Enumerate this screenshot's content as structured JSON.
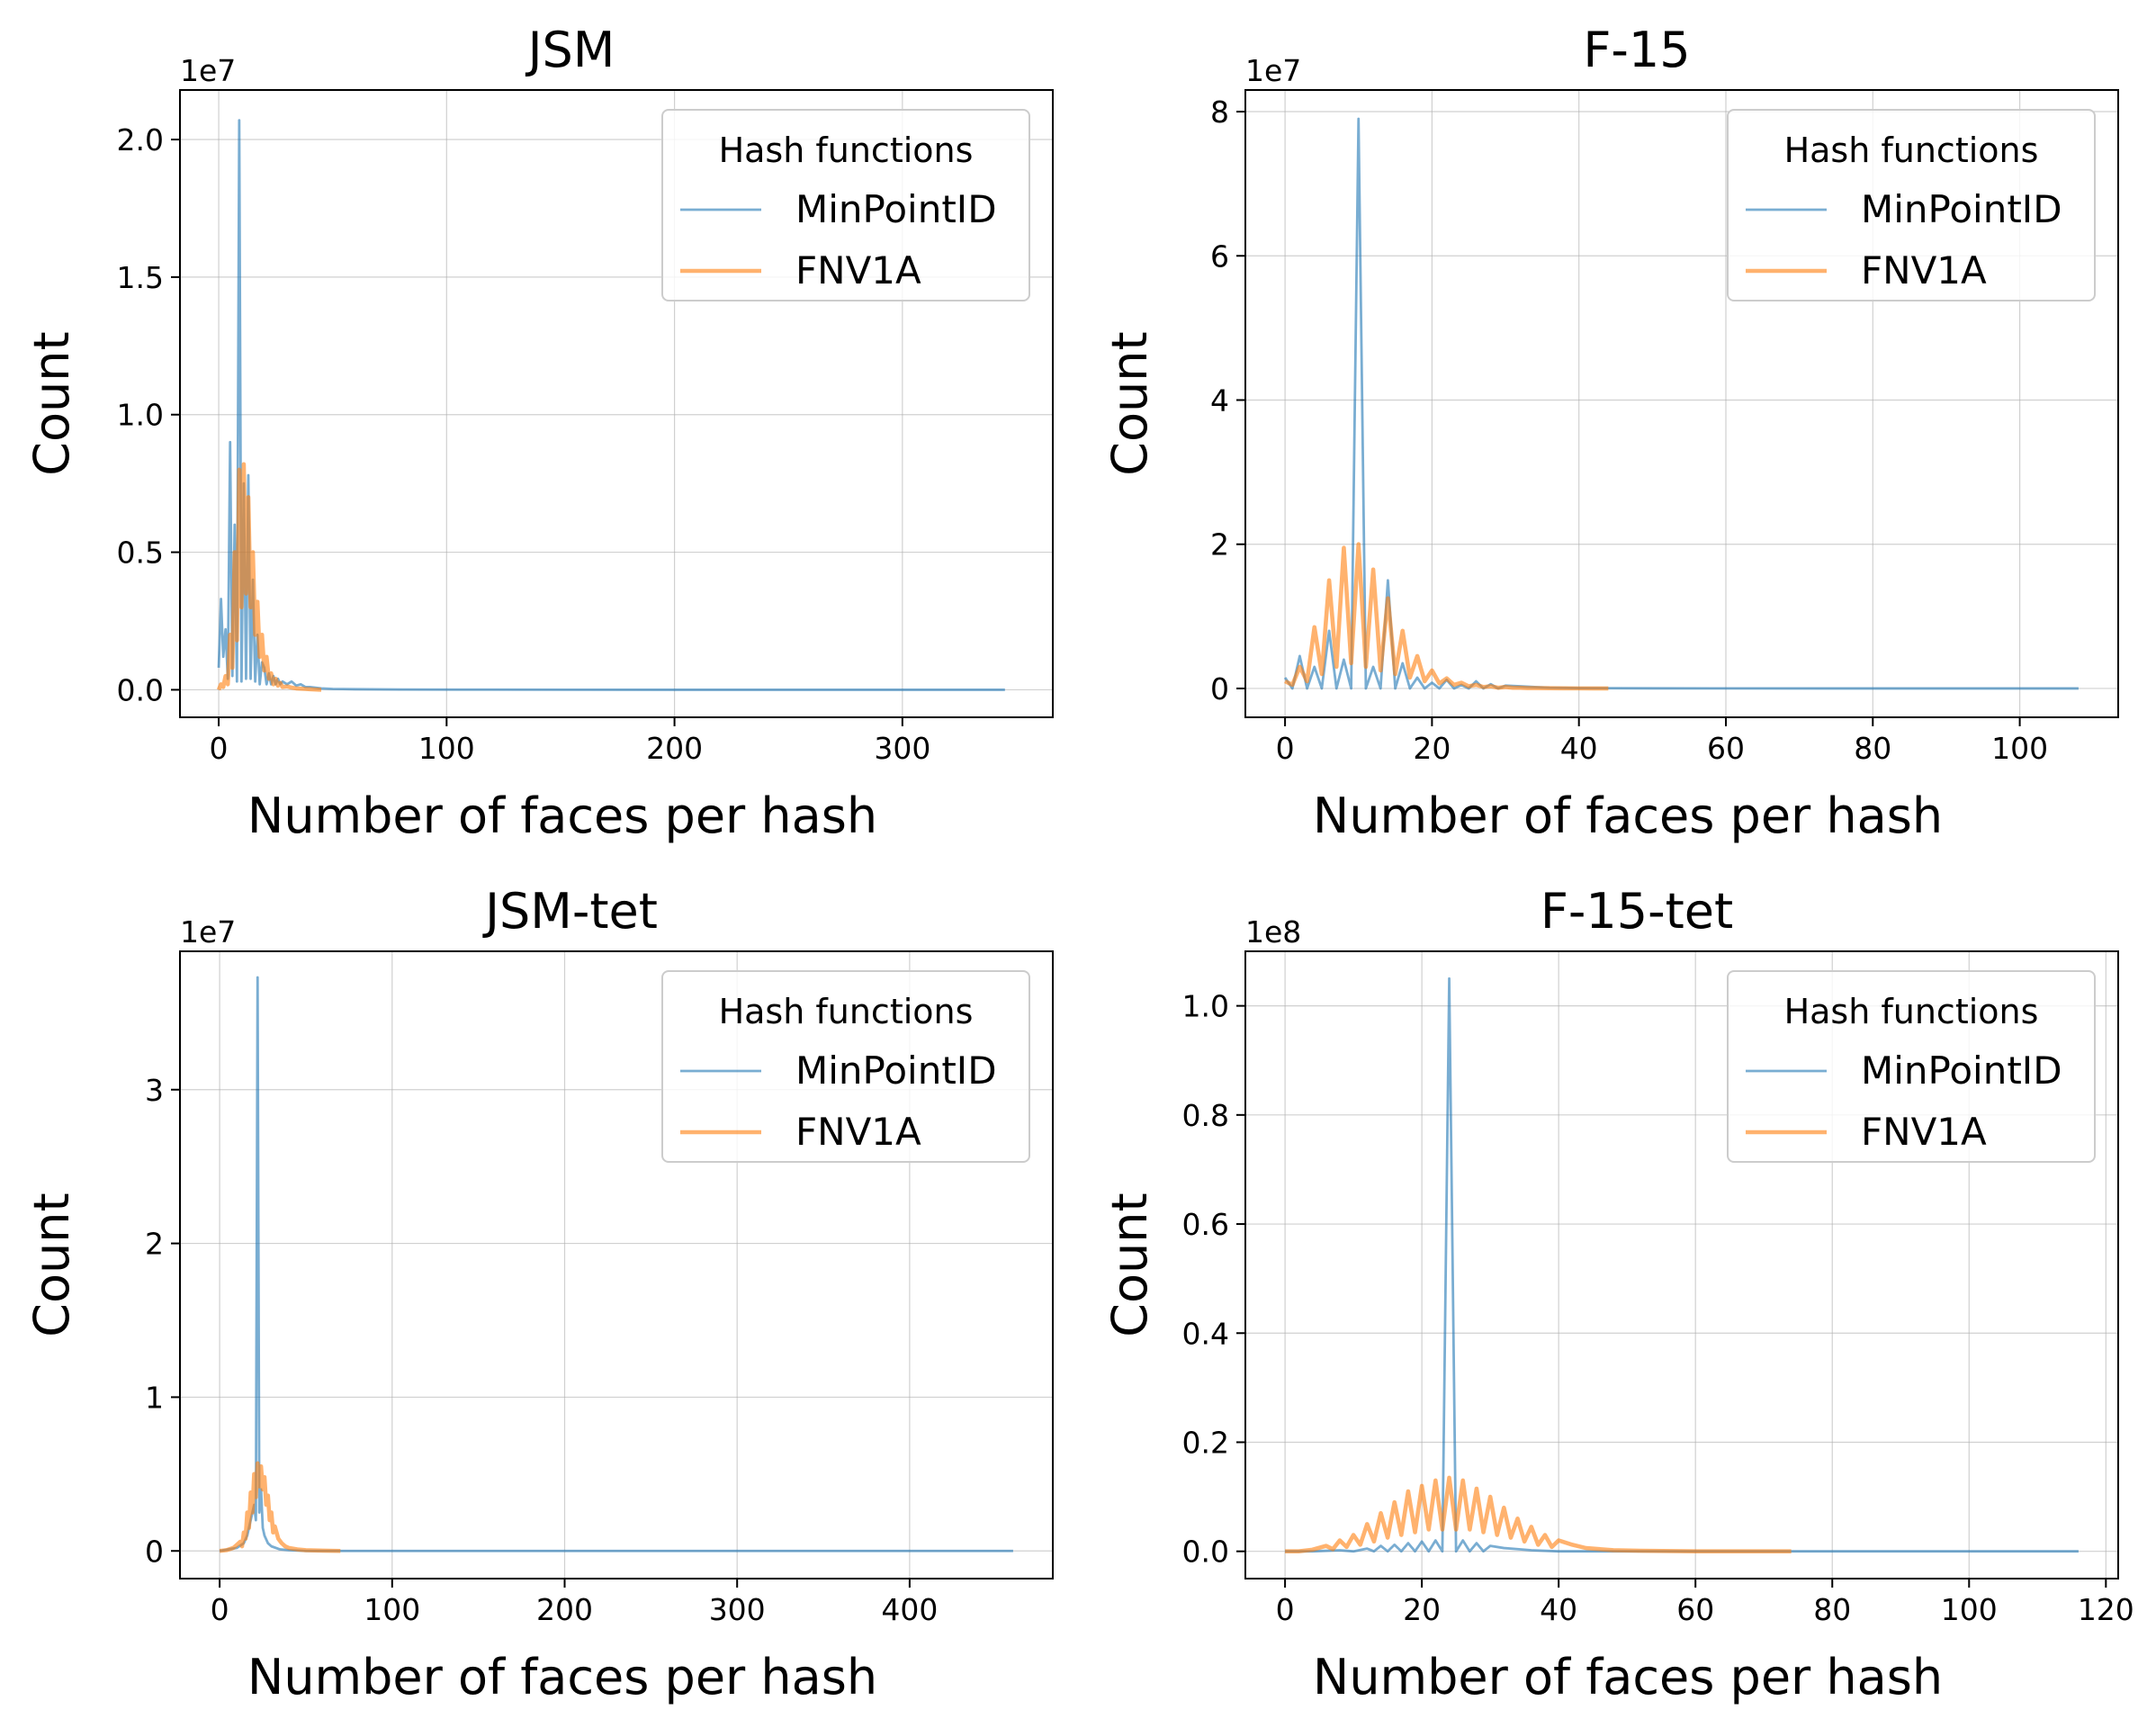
{
  "colors": {
    "MinPointID": "#1f77b4",
    "FNV1A": "#ff7f0e",
    "grid": "#b0b0b0",
    "axes": "#000000"
  },
  "chart_data": [
    {
      "type": "line",
      "title": "JSM",
      "xlabel": "Number of faces per hash",
      "ylabel": "Count",
      "offset_label": "1e7",
      "scale": 10000000,
      "xlim": [
        -17,
        366
      ],
      "ylim": [
        -0.1,
        2.18
      ],
      "xticks": [
        0,
        100,
        200,
        300
      ],
      "yticks": [
        0.0,
        0.5,
        1.0,
        1.5,
        2.0
      ],
      "ytick_labels": [
        "0.0",
        "0.5",
        "1.0",
        "1.5",
        "2.0"
      ],
      "grid": true,
      "legend": {
        "title": "Hash functions",
        "placement": "upper right",
        "entries": [
          "MinPointID",
          "FNV1A"
        ]
      },
      "series": [
        {
          "name": "MinPointID",
          "x": [
            0,
            1,
            2,
            3,
            4,
            5,
            6,
            7,
            8,
            9,
            10,
            11,
            12,
            13,
            14,
            15,
            16,
            17,
            18,
            19,
            20,
            21,
            22,
            23,
            24,
            25,
            26,
            27,
            28,
            30,
            32,
            34,
            36,
            38,
            40,
            45,
            50,
            60,
            80,
            120,
            200,
            300,
            345
          ],
          "y": [
            0.08,
            0.33,
            0.12,
            0.22,
            0.04,
            0.9,
            0.05,
            0.6,
            0.03,
            2.07,
            0.03,
            0.75,
            0.04,
            0.78,
            0.04,
            0.4,
            0.03,
            0.2,
            0.02,
            0.1,
            0.08,
            0.02,
            0.06,
            0.02,
            0.05,
            0.02,
            0.04,
            0.02,
            0.03,
            0.02,
            0.03,
            0.015,
            0.02,
            0.01,
            0.01,
            0.005,
            0.003,
            0.002,
            0.001,
            0.0005,
            0.0,
            0.0,
            0.0
          ]
        },
        {
          "name": "FNV1A",
          "x": [
            0,
            1,
            2,
            3,
            4,
            5,
            6,
            7,
            8,
            9,
            10,
            11,
            12,
            13,
            14,
            15,
            16,
            17,
            18,
            19,
            20,
            21,
            22,
            23,
            24,
            25,
            26,
            27,
            28,
            30,
            32,
            34,
            36,
            38,
            40,
            42,
            45
          ],
          "y": [
            0.0,
            0.02,
            0.01,
            0.05,
            0.02,
            0.2,
            0.08,
            0.5,
            0.18,
            0.8,
            0.3,
            0.82,
            0.35,
            0.7,
            0.3,
            0.5,
            0.2,
            0.32,
            0.12,
            0.2,
            0.07,
            0.12,
            0.04,
            0.06,
            0.02,
            0.04,
            0.015,
            0.025,
            0.01,
            0.012,
            0.008,
            0.005,
            0.004,
            0.003,
            0.002,
            0.001,
            0.0
          ]
        }
      ]
    },
    {
      "type": "line",
      "title": "F-15",
      "xlabel": "Number of faces per hash",
      "ylabel": "Count",
      "offset_label": "1e7",
      "scale": 10000000,
      "xlim": [
        -5.4,
        113.4
      ],
      "ylim": [
        -0.4,
        8.3
      ],
      "xticks": [
        0,
        20,
        40,
        60,
        80,
        100
      ],
      "yticks": [
        0,
        2,
        4,
        6,
        8
      ],
      "ytick_labels": [
        "0",
        "2",
        "4",
        "6",
        "8"
      ],
      "grid": true,
      "legend": {
        "title": "Hash functions",
        "placement": "upper right",
        "entries": [
          "MinPointID",
          "FNV1A"
        ]
      },
      "series": [
        {
          "name": "MinPointID",
          "x": [
            0,
            1,
            2,
            3,
            4,
            5,
            6,
            7,
            8,
            9,
            10,
            11,
            12,
            13,
            14,
            15,
            16,
            17,
            18,
            19,
            20,
            21,
            22,
            23,
            24,
            25,
            26,
            27,
            28,
            29,
            30,
            32,
            34,
            36,
            40,
            50,
            60,
            80,
            100,
            108
          ],
          "y": [
            0.15,
            0.0,
            0.45,
            0.0,
            0.3,
            0.0,
            0.8,
            0.0,
            0.4,
            0.0,
            7.9,
            0.0,
            0.3,
            0.0,
            1.5,
            0.0,
            0.35,
            0.0,
            0.15,
            0.0,
            0.08,
            0.0,
            0.12,
            0.0,
            0.05,
            0.0,
            0.1,
            0.0,
            0.06,
            0.0,
            0.04,
            0.03,
            0.02,
            0.01,
            0.005,
            0.002,
            0.001,
            0.0,
            0.0,
            0.0
          ]
        },
        {
          "name": "FNV1A",
          "x": [
            0,
            1,
            2,
            3,
            4,
            5,
            6,
            7,
            8,
            9,
            10,
            11,
            12,
            13,
            14,
            15,
            16,
            17,
            18,
            19,
            20,
            21,
            22,
            23,
            24,
            25,
            26,
            27,
            28,
            29,
            30,
            31,
            32,
            33,
            34,
            36,
            38,
            40,
            42,
            44
          ],
          "y": [
            0.1,
            0.05,
            0.3,
            0.1,
            0.85,
            0.2,
            1.5,
            0.3,
            1.95,
            0.35,
            2.0,
            0.3,
            1.65,
            0.25,
            1.25,
            0.2,
            0.8,
            0.15,
            0.45,
            0.1,
            0.25,
            0.07,
            0.14,
            0.05,
            0.08,
            0.03,
            0.05,
            0.02,
            0.03,
            0.01,
            0.02,
            0.01,
            0.01,
            0.005,
            0.005,
            0.003,
            0.002,
            0.001,
            0.0,
            0.0
          ]
        }
      ]
    },
    {
      "type": "line",
      "title": "JSM-tet",
      "xlabel": "Number of faces per hash",
      "ylabel": "Count",
      "offset_label": "1e7",
      "scale": 10000000,
      "xlim": [
        -23,
        483
      ],
      "ylim": [
        -0.18,
        3.9
      ],
      "xticks": [
        0,
        100,
        200,
        300,
        400
      ],
      "yticks": [
        0,
        1,
        2,
        3
      ],
      "ytick_labels": [
        "0",
        "1",
        "2",
        "3"
      ],
      "grid": true,
      "legend": {
        "title": "Hash functions",
        "placement": "upper right",
        "entries": [
          "MinPointID",
          "FNV1A"
        ]
      },
      "series": [
        {
          "name": "MinPointID",
          "x": [
            0,
            5,
            10,
            14,
            16,
            18,
            20,
            21,
            22,
            23,
            24,
            25,
            26,
            28,
            30,
            35,
            40,
            50,
            70,
            100,
            200,
            300,
            400,
            460
          ],
          "y": [
            0.0,
            0.01,
            0.02,
            0.05,
            0.1,
            0.2,
            0.3,
            0.2,
            3.73,
            0.25,
            0.4,
            0.15,
            0.1,
            0.05,
            0.03,
            0.01,
            0.005,
            0.0,
            0.0,
            0.0,
            0.0,
            0.0,
            0.0,
            0.0
          ]
        },
        {
          "name": "FNV1A",
          "x": [
            0,
            4,
            8,
            10,
            12,
            13,
            14,
            15,
            16,
            17,
            18,
            19,
            20,
            21,
            22,
            23,
            24,
            25,
            26,
            27,
            28,
            29,
            30,
            31,
            32,
            34,
            36,
            38,
            40,
            45,
            50,
            60,
            70
          ],
          "y": [
            0.0,
            0.005,
            0.02,
            0.04,
            0.06,
            0.03,
            0.12,
            0.08,
            0.25,
            0.15,
            0.38,
            0.25,
            0.5,
            0.35,
            0.57,
            0.42,
            0.55,
            0.4,
            0.48,
            0.3,
            0.36,
            0.2,
            0.25,
            0.12,
            0.16,
            0.08,
            0.05,
            0.03,
            0.02,
            0.01,
            0.005,
            0.002,
            0.0
          ]
        }
      ]
    },
    {
      "type": "line",
      "title": "F-15-tet",
      "xlabel": "Number of faces per hash",
      "ylabel": "Count",
      "offset_label": "1e8",
      "scale": 100000000,
      "xlim": [
        -5.8,
        121.8
      ],
      "ylim": [
        -0.05,
        1.1
      ],
      "xticks": [
        0,
        20,
        40,
        60,
        80,
        100,
        120
      ],
      "yticks": [
        0.0,
        0.2,
        0.4,
        0.6,
        0.8,
        1.0
      ],
      "ytick_labels": [
        "0.0",
        "0.2",
        "0.4",
        "0.6",
        "0.8",
        "1.0"
      ],
      "grid": true,
      "legend": {
        "title": "Hash functions",
        "placement": "upper right",
        "entries": [
          "MinPointID",
          "FNV1A"
        ]
      },
      "series": [
        {
          "name": "MinPointID",
          "x": [
            0,
            4,
            8,
            10,
            12,
            13,
            14,
            15,
            16,
            17,
            18,
            19,
            20,
            21,
            22,
            23,
            24,
            25,
            26,
            27,
            28,
            29,
            30,
            32,
            34,
            36,
            40,
            50,
            74,
            100,
            116
          ],
          "y": [
            0.0,
            0.0,
            0.002,
            0.0,
            0.005,
            0.0,
            0.01,
            0.0,
            0.012,
            0.0,
            0.015,
            0.0,
            0.018,
            0.0,
            0.02,
            0.0,
            1.05,
            0.0,
            0.02,
            0.0,
            0.015,
            0.0,
            0.01,
            0.006,
            0.004,
            0.002,
            0.0,
            0.0,
            0.0,
            0.0,
            0.0
          ]
        },
        {
          "name": "FNV1A",
          "x": [
            0,
            2,
            4,
            6,
            7,
            8,
            9,
            10,
            11,
            12,
            13,
            14,
            15,
            16,
            17,
            18,
            19,
            20,
            21,
            22,
            23,
            24,
            25,
            26,
            27,
            28,
            29,
            30,
            31,
            32,
            33,
            34,
            35,
            36,
            37,
            38,
            39,
            40,
            42,
            44,
            48,
            52,
            60,
            74
          ],
          "y": [
            0.0,
            0.0,
            0.003,
            0.01,
            0.004,
            0.02,
            0.008,
            0.03,
            0.012,
            0.05,
            0.018,
            0.07,
            0.025,
            0.09,
            0.03,
            0.11,
            0.035,
            0.12,
            0.04,
            0.13,
            0.04,
            0.135,
            0.04,
            0.13,
            0.04,
            0.115,
            0.035,
            0.1,
            0.03,
            0.08,
            0.025,
            0.06,
            0.018,
            0.045,
            0.012,
            0.03,
            0.008,
            0.02,
            0.012,
            0.006,
            0.002,
            0.001,
            0.0,
            0.0
          ]
        }
      ]
    }
  ]
}
